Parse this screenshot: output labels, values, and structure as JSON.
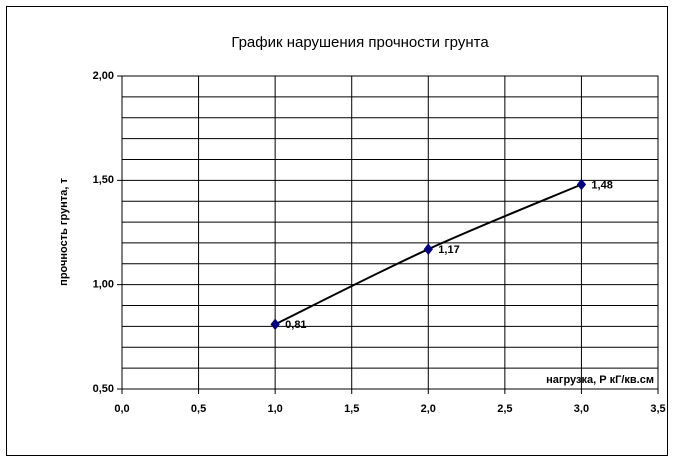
{
  "chart_data": {
    "type": "scatter",
    "title": "График нарушения прочности грунта",
    "x_label": "нагрузка, Р кГ/кв.см",
    "y_label": "прочность грунта, т",
    "x": [
      1,
      2,
      3
    ],
    "values": [
      0.81,
      1.17,
      1.48
    ],
    "value_labels": [
      "0,81",
      "1,17",
      "1,48"
    ],
    "color": "#000080",
    "line_color": "#000000",
    "xlim": [
      0,
      3.5
    ],
    "ylim": [
      0.5,
      2.0
    ],
    "xticks": [
      {
        "value": 0,
        "label": "0,0"
      },
      {
        "value": 0.5,
        "label": "0,5"
      },
      {
        "value": 1,
        "label": "1,0"
      },
      {
        "value": 1.5,
        "label": "1,5"
      },
      {
        "value": 2,
        "label": "2,0"
      },
      {
        "value": 2.5,
        "label": "2,5"
      },
      {
        "value": 3,
        "label": "3,0"
      },
      {
        "value": 3.5,
        "label": "3,5"
      }
    ],
    "yticks": [
      {
        "value": 0.5,
        "label": "0,50"
      },
      {
        "value": 1,
        "label": "1,00"
      },
      {
        "value": 1.5,
        "label": "1,50"
      },
      {
        "value": 2,
        "label": "2,00"
      }
    ],
    "ygrid": [
      0.6,
      0.7,
      0.8,
      0.9,
      1.1,
      1.2,
      1.3,
      1.4,
      1.6,
      1.7,
      1.8,
      1.9
    ],
    "grid": true
  }
}
